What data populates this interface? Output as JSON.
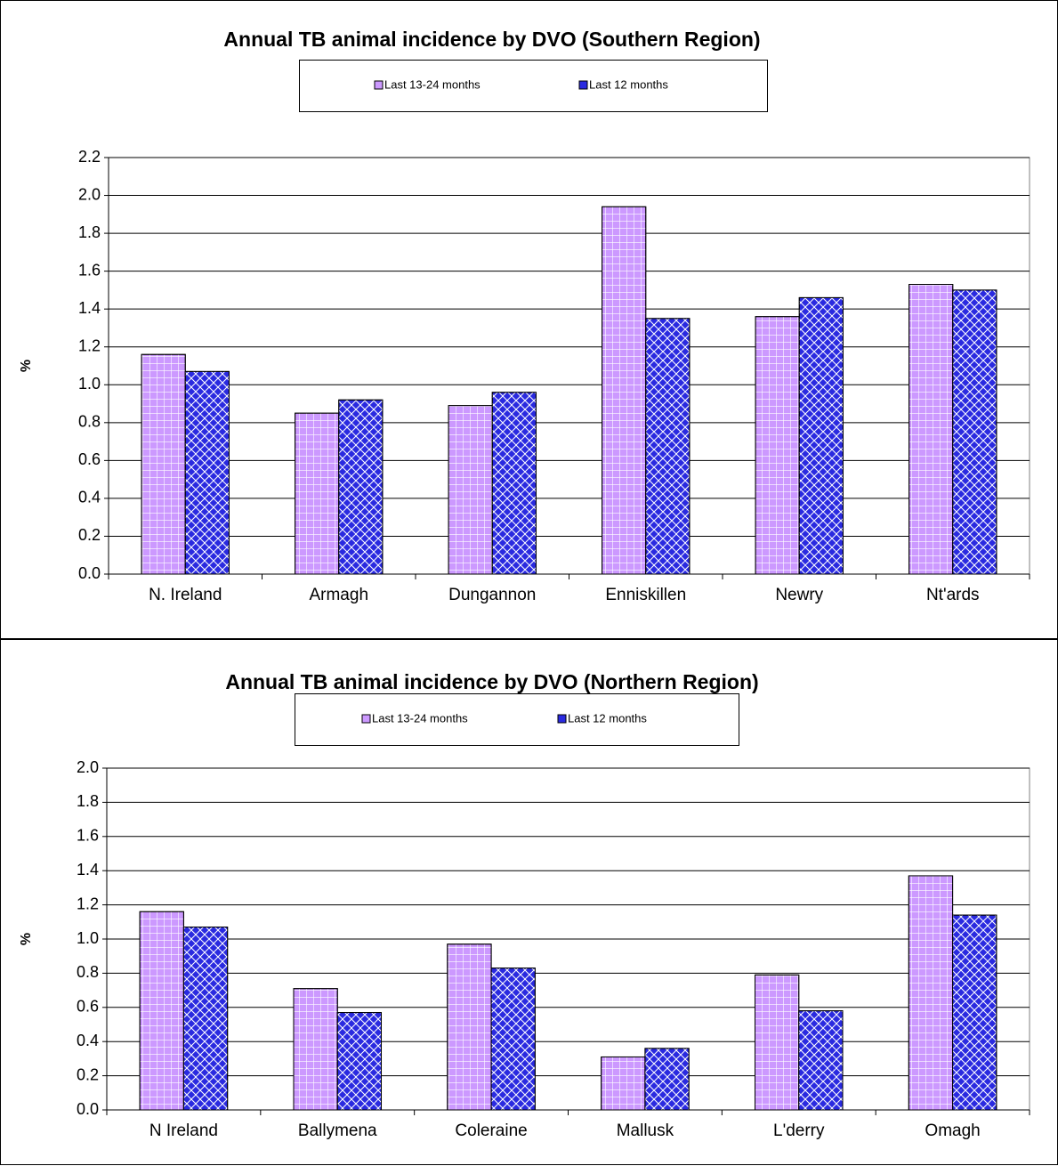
{
  "chart_data": [
    {
      "type": "bar",
      "title": "Annual TB animal incidence by DVO (Southern Region)",
      "y_label": "%",
      "categories": [
        "N. Ireland",
        "Armagh",
        "Dungannon",
        "Enniskillen",
        "Newry",
        "Nt'ards"
      ],
      "series": [
        {
          "name": "Last 13-24 months",
          "color": "#cc99ff",
          "values": [
            1.16,
            0.85,
            0.89,
            1.94,
            1.36,
            1.53
          ]
        },
        {
          "name": "Last 12 months",
          "color": "#2a2ae0",
          "values": [
            1.07,
            0.92,
            0.96,
            1.35,
            1.46,
            1.5
          ]
        }
      ],
      "ylim": [
        0,
        2.2
      ],
      "yticks": [
        {
          "value": 0,
          "label": "0.0"
        },
        0.2,
        0.4,
        0.6,
        0.8,
        {
          "value": 1,
          "label": "1.0"
        },
        1.2,
        1.4,
        1.6,
        1.8,
        {
          "value": 2,
          "label": "2.0"
        },
        2.2
      ],
      "grid": true,
      "legend": "top"
    },
    {
      "type": "bar",
      "title": "Annual TB animal incidence by DVO (Northern Region)",
      "y_label": "%",
      "categories": [
        "N Ireland",
        "Ballymena",
        "Coleraine",
        "Mallusk",
        "L'derry",
        "Omagh"
      ],
      "series": [
        {
          "name": "Last 13-24 months",
          "color": "#cc99ff",
          "values": [
            1.16,
            0.71,
            0.97,
            0.31,
            0.79,
            1.37
          ]
        },
        {
          "name": "Last 12 months",
          "color": "#2a2ae0",
          "values": [
            1.07,
            0.57,
            0.83,
            0.36,
            0.58,
            1.14
          ]
        }
      ],
      "ylim": [
        0,
        2.0
      ],
      "yticks": [
        {
          "value": 0,
          "label": "0.0"
        },
        0.2,
        0.4,
        0.6,
        0.8,
        {
          "value": 1,
          "label": "1.0"
        },
        1.2,
        1.4,
        1.6,
        1.8,
        {
          "value": 2,
          "label": "2.0"
        }
      ],
      "grid": true,
      "legend": "top"
    }
  ]
}
